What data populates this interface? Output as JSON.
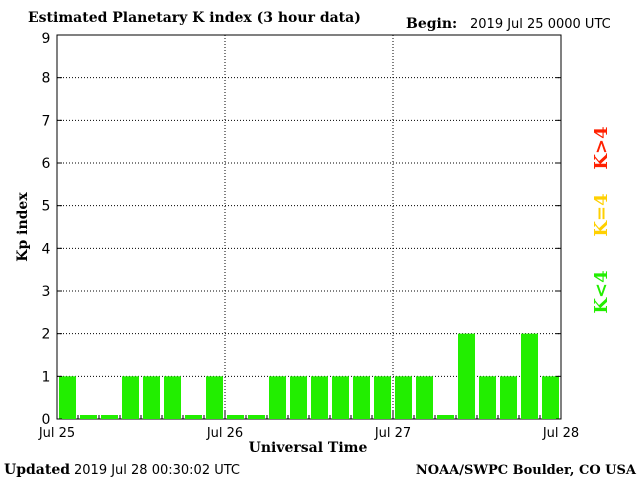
{
  "header": {
    "title": "Estimated Planetary K index (3 hour data)",
    "begin_label": "Begin:",
    "begin_value": "2019 Jul 25 0000 UTC"
  },
  "footer": {
    "updated_label": "Updated",
    "updated_value": "2019 Jul 28 00:30:02 UTC",
    "source": "NOAA/SWPC Boulder, CO USA"
  },
  "legend": {
    "items": [
      {
        "label": "K>4",
        "color": "#ff2000"
      },
      {
        "label": "K=4",
        "color": "#ffd000"
      },
      {
        "label": "K<4",
        "color": "#22ee00"
      }
    ]
  },
  "colors": {
    "bar_low": "#22ee00",
    "bar_mid": "#ffd000",
    "bar_high": "#ff2000"
  },
  "chart_data": {
    "type": "bar",
    "title": "Estimated Planetary K index (3 hour data)",
    "xlabel": "Universal Time",
    "ylabel": "Kp index",
    "ylim": [
      0,
      9
    ],
    "yticks": [
      "0",
      "1",
      "2",
      "3",
      "4",
      "5",
      "6",
      "7",
      "8",
      "9"
    ],
    "xticks": [
      "Jul 25",
      "Jul 26",
      "Jul 27",
      "Jul 28"
    ],
    "interval": "3 hour",
    "grid": true,
    "values": [
      1,
      0,
      0,
      1,
      1,
      1,
      0,
      1,
      0,
      0,
      1,
      1,
      1,
      1,
      1,
      1,
      1,
      1,
      0,
      2,
      1,
      1,
      2,
      1
    ]
  }
}
